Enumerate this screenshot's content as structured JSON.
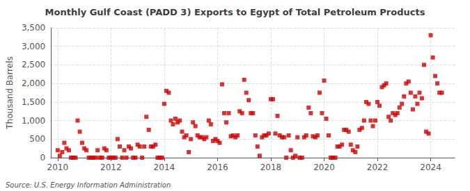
{
  "chart_data": {
    "type": "scatter",
    "title": "Monthly Gulf Coast (PADD 3) Exports to Egypt of Total Petroleum Products",
    "ylabel": "Thousand Barrels",
    "annotations": [
      "Source: U.S. Energy Information Administration"
    ],
    "color": "#cc0000",
    "marker": "square",
    "grid": true,
    "xlim": [
      2009.75,
      2024.9
    ],
    "xticks": [
      2010,
      2012,
      2014,
      2016,
      2018,
      2020,
      2022,
      2024
    ],
    "ylim": [
      0,
      3500
    ],
    "yticks": [
      0,
      500,
      {
        "value": 1000,
        "label": "1,000"
      },
      {
        "value": 1500,
        "label": "1,500"
      },
      {
        "value": 2000,
        "label": "2,000"
      },
      {
        "value": 2500,
        "label": "2,500"
      },
      {
        "value": 3000,
        "label": "3,000"
      },
      {
        "value": 3500,
        "label": "3,500"
      }
    ],
    "x": [
      2010.0,
      2010.08,
      2010.17,
      2010.25,
      2010.33,
      2010.42,
      2010.5,
      2010.58,
      2010.67,
      2010.75,
      2010.83,
      2010.92,
      2011.0,
      2011.08,
      2011.17,
      2011.25,
      2011.33,
      2011.42,
      2011.5,
      2011.58,
      2011.67,
      2011.75,
      2011.83,
      2011.92,
      2012.0,
      2012.08,
      2012.17,
      2012.25,
      2012.33,
      2012.42,
      2012.5,
      2012.58,
      2012.67,
      2012.75,
      2012.83,
      2012.92,
      2013.0,
      2013.08,
      2013.17,
      2013.25,
      2013.33,
      2013.42,
      2013.5,
      2013.58,
      2013.67,
      2013.75,
      2013.83,
      2013.92,
      2014.0,
      2014.08,
      2014.17,
      2014.25,
      2014.33,
      2014.42,
      2014.5,
      2014.58,
      2014.67,
      2014.75,
      2014.83,
      2014.92,
      2015.0,
      2015.08,
      2015.17,
      2015.25,
      2015.33,
      2015.42,
      2015.5,
      2015.58,
      2015.67,
      2015.75,
      2015.83,
      2015.92,
      2016.0,
      2016.08,
      2016.17,
      2016.25,
      2016.33,
      2016.42,
      2016.5,
      2016.58,
      2016.67,
      2016.75,
      2016.83,
      2016.92,
      2017.0,
      2017.08,
      2017.17,
      2017.25,
      2017.33,
      2017.42,
      2017.5,
      2017.58,
      2017.67,
      2017.75,
      2017.83,
      2017.92,
      2018.0,
      2018.08,
      2018.17,
      2018.25,
      2018.33,
      2018.42,
      2018.5,
      2018.58,
      2018.67,
      2018.75,
      2018.83,
      2018.92,
      2019.0,
      2019.08,
      2019.17,
      2019.25,
      2019.33,
      2019.42,
      2019.5,
      2019.58,
      2019.67,
      2019.75,
      2019.83,
      2019.92,
      2020.0,
      2020.08,
      2020.17,
      2020.25,
      2020.33,
      2020.42,
      2020.5,
      2020.58,
      2020.67,
      2020.75,
      2020.83,
      2020.92,
      2021.0,
      2021.08,
      2021.17,
      2021.25,
      2021.33,
      2021.42,
      2021.5,
      2021.58,
      2021.67,
      2021.75,
      2021.83,
      2021.92,
      2022.0,
      2022.08,
      2022.17,
      2022.25,
      2022.33,
      2022.42,
      2022.5,
      2022.58,
      2022.67,
      2022.75,
      2022.83,
      2022.92,
      2023.0,
      2023.08,
      2023.17,
      2023.25,
      2023.33,
      2023.42,
      2023.5,
      2023.58,
      2023.67,
      2023.75,
      2023.83,
      2023.92,
      2024.0,
      2024.08,
      2024.17,
      2024.25,
      2024.33,
      2024.42
    ],
    "values": [
      200,
      50,
      150,
      400,
      250,
      200,
      0,
      0,
      0,
      1000,
      700,
      400,
      250,
      200,
      0,
      0,
      0,
      0,
      200,
      0,
      0,
      250,
      200,
      0,
      0,
      0,
      0,
      500,
      300,
      0,
      200,
      0,
      300,
      250,
      0,
      0,
      350,
      300,
      0,
      300,
      1100,
      750,
      300,
      300,
      350,
      0,
      0,
      0,
      1450,
      1800,
      1750,
      1000,
      900,
      1050,
      950,
      1000,
      700,
      550,
      600,
      150,
      500,
      950,
      850,
      600,
      550,
      550,
      500,
      550,
      1000,
      900,
      450,
      500,
      450,
      400,
      1975,
      1200,
      950,
      1200,
      575,
      600,
      550,
      600,
      1250,
      1200,
      2100,
      1750,
      1550,
      1200,
      1200,
      600,
      300,
      50,
      550,
      600,
      600,
      650,
      1575,
      1575,
      650,
      1125,
      600,
      550,
      550,
      0,
      600,
      200,
      0,
      50,
      550,
      0,
      0,
      550,
      600,
      1350,
      1200,
      575,
      550,
      600,
      1750,
      1200,
      2075,
      1050,
      600,
      0,
      0,
      0,
      300,
      300,
      350,
      750,
      750,
      700,
      350,
      200,
      150,
      300,
      750,
      800,
      1000,
      1500,
      1450,
      1000,
      850,
      1000,
      1500,
      1400,
      1900,
      1950,
      2000,
      1100,
      1000,
      1200,
      1150,
      1200,
      1350,
      1450,
      1650,
      2000,
      2050,
      1750,
      1300,
      1650,
      1450,
      1750,
      1600,
      2500,
      700,
      650,
      3300,
      2700,
      2200,
      2000,
      1750,
      1750
    ]
  }
}
